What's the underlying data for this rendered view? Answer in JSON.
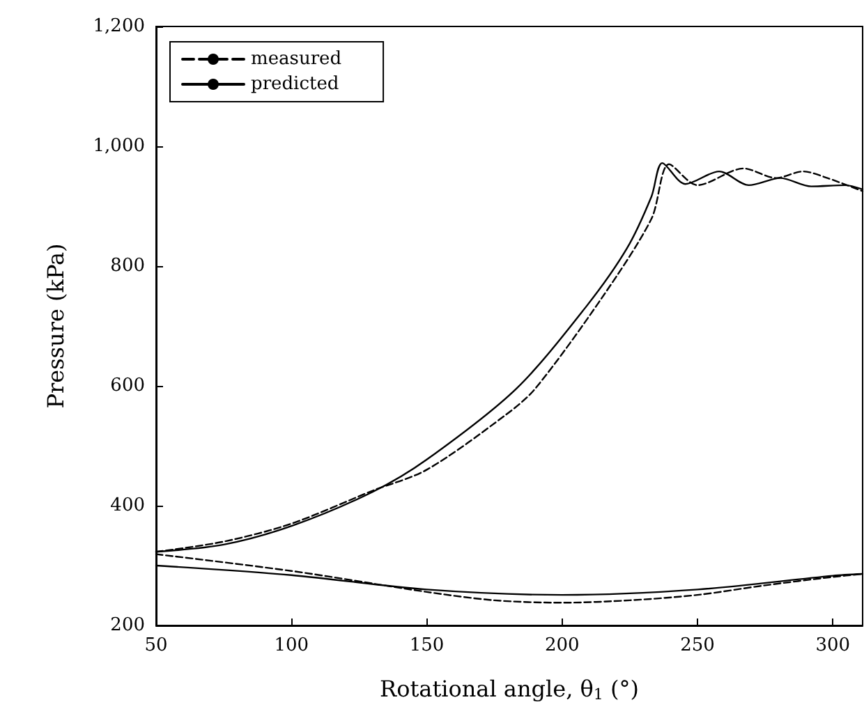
{
  "chart_data": {
    "type": "line",
    "xlabel": "Rotational angle, θ$_{1}$ (°)",
    "ylabel": "Pressure (kPa)",
    "xlim": [
      50,
      311
    ],
    "ylim": [
      200,
      1200
    ],
    "xticks": [
      50,
      100,
      150,
      200,
      250,
      300
    ],
    "yticks": [
      200,
      400,
      600,
      800,
      {
        "value": 1000,
        "label": "1,000"
      },
      {
        "value": 1200,
        "label": "1,200"
      }
    ],
    "grid": false,
    "legend": "top left",
    "marker": "none",
    "series": [
      {
        "name": "measured",
        "color": "#000000",
        "line_style": "dashed",
        "x": [
          50,
          75,
          100,
          130,
          150,
          179,
          190,
          215,
          233,
          239.5,
          250,
          267,
          279,
          289,
          298,
          311,
          null,
          50,
          100,
          150,
          175,
          200,
          225,
          250,
          275,
          300,
          311
        ],
        "values": [
          323,
          340,
          370,
          425,
          460,
          551,
          595,
          749,
          879,
          970,
          935,
          963,
          947,
          958,
          947,
          925,
          null,
          319,
          291,
          256,
          242,
          238,
          242,
          251,
          267,
          281,
          286
        ]
      },
      {
        "name": "predicted",
        "color": "#000000",
        "line_style": "solid",
        "x": [
          50,
          75,
          100.6,
          130,
          150,
          183,
          209,
          224,
          233,
          237,
          245.5,
          258,
          269,
          280.6,
          292,
          304.5,
          311,
          null,
          50,
          100,
          150,
          200,
          250,
          300,
          311
        ],
        "values": [
          323,
          335,
          367,
          423,
          477,
          595,
          733,
          830,
          916,
          972,
          937,
          958,
          935,
          947,
          933,
          935,
          928,
          null,
          300,
          284,
          260,
          251,
          260,
          283,
          286
        ]
      }
    ]
  }
}
